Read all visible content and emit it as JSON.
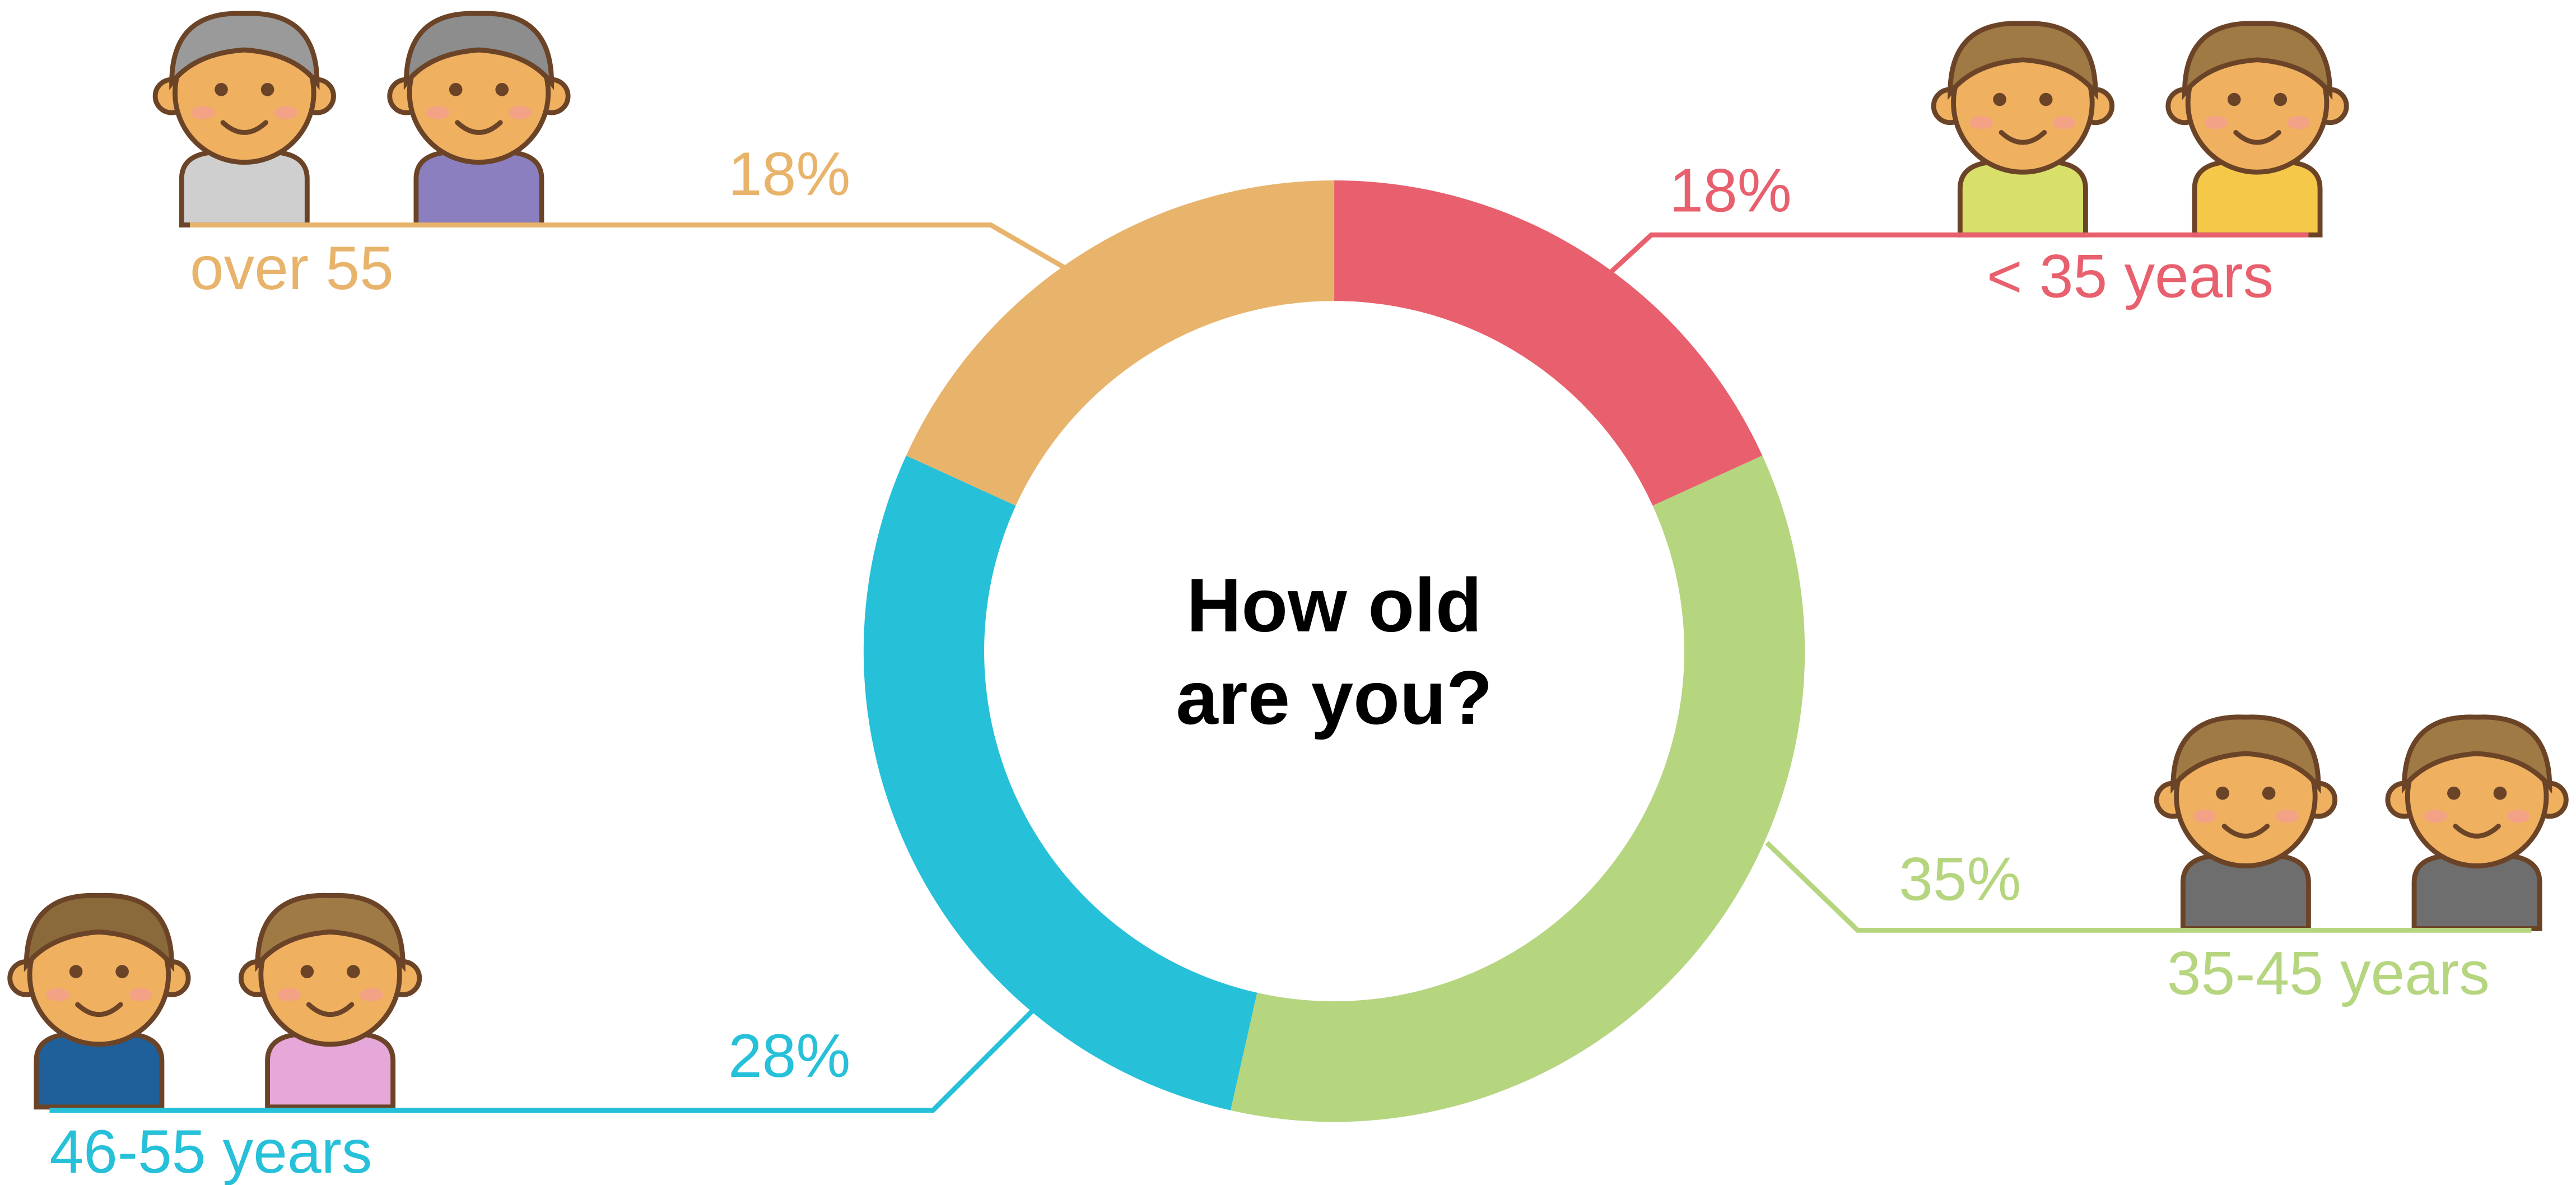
{
  "chart_data": {
    "type": "pie",
    "donut": true,
    "title": "How old are you?",
    "categories": [
      "< 35 years",
      "35-45 years",
      "46-55 years",
      "over 55"
    ],
    "values": [
      18,
      35,
      28,
      18
    ],
    "value_labels": [
      "18%",
      "35%",
      "28%",
      "18%"
    ],
    "colors": [
      "#e8606e",
      "#b5d57f",
      "#26c0d9",
      "#e8b46c"
    ]
  }
}
